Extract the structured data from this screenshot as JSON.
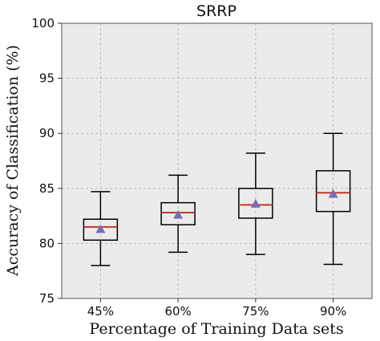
{
  "chart_data": {
    "type": "box",
    "title": "SRRP",
    "xlabel": "Percentage of Training Data sets",
    "ylabel": "Accuracy of Classification (%)",
    "ylim": [
      75,
      100
    ],
    "yticks": [
      "75",
      "80",
      "85",
      "90",
      "95",
      "100"
    ],
    "categories": [
      "45%",
      "60%",
      "75%",
      "90%"
    ],
    "grid": true,
    "colors": {
      "background": "#ebebeb",
      "grid": "#b0b0b0",
      "box": "#000000",
      "median": "#c0392b",
      "mean_marker": "#7b6bb0"
    },
    "boxes": [
      {
        "category": "45%",
        "whisker_low": 78.0,
        "q1": 80.3,
        "median": 81.5,
        "q3": 82.2,
        "whisker_high": 84.7,
        "mean": 81.3
      },
      {
        "category": "60%",
        "whisker_low": 79.2,
        "q1": 81.7,
        "median": 82.8,
        "q3": 83.7,
        "whisker_high": 86.2,
        "mean": 82.6
      },
      {
        "category": "75%",
        "whisker_low": 79.0,
        "q1": 82.3,
        "median": 83.5,
        "q3": 85.0,
        "whisker_high": 88.2,
        "mean": 83.6
      },
      {
        "category": "90%",
        "whisker_low": 78.1,
        "q1": 82.9,
        "median": 84.6,
        "q3": 86.6,
        "whisker_high": 90.0,
        "mean": 84.5
      }
    ]
  }
}
